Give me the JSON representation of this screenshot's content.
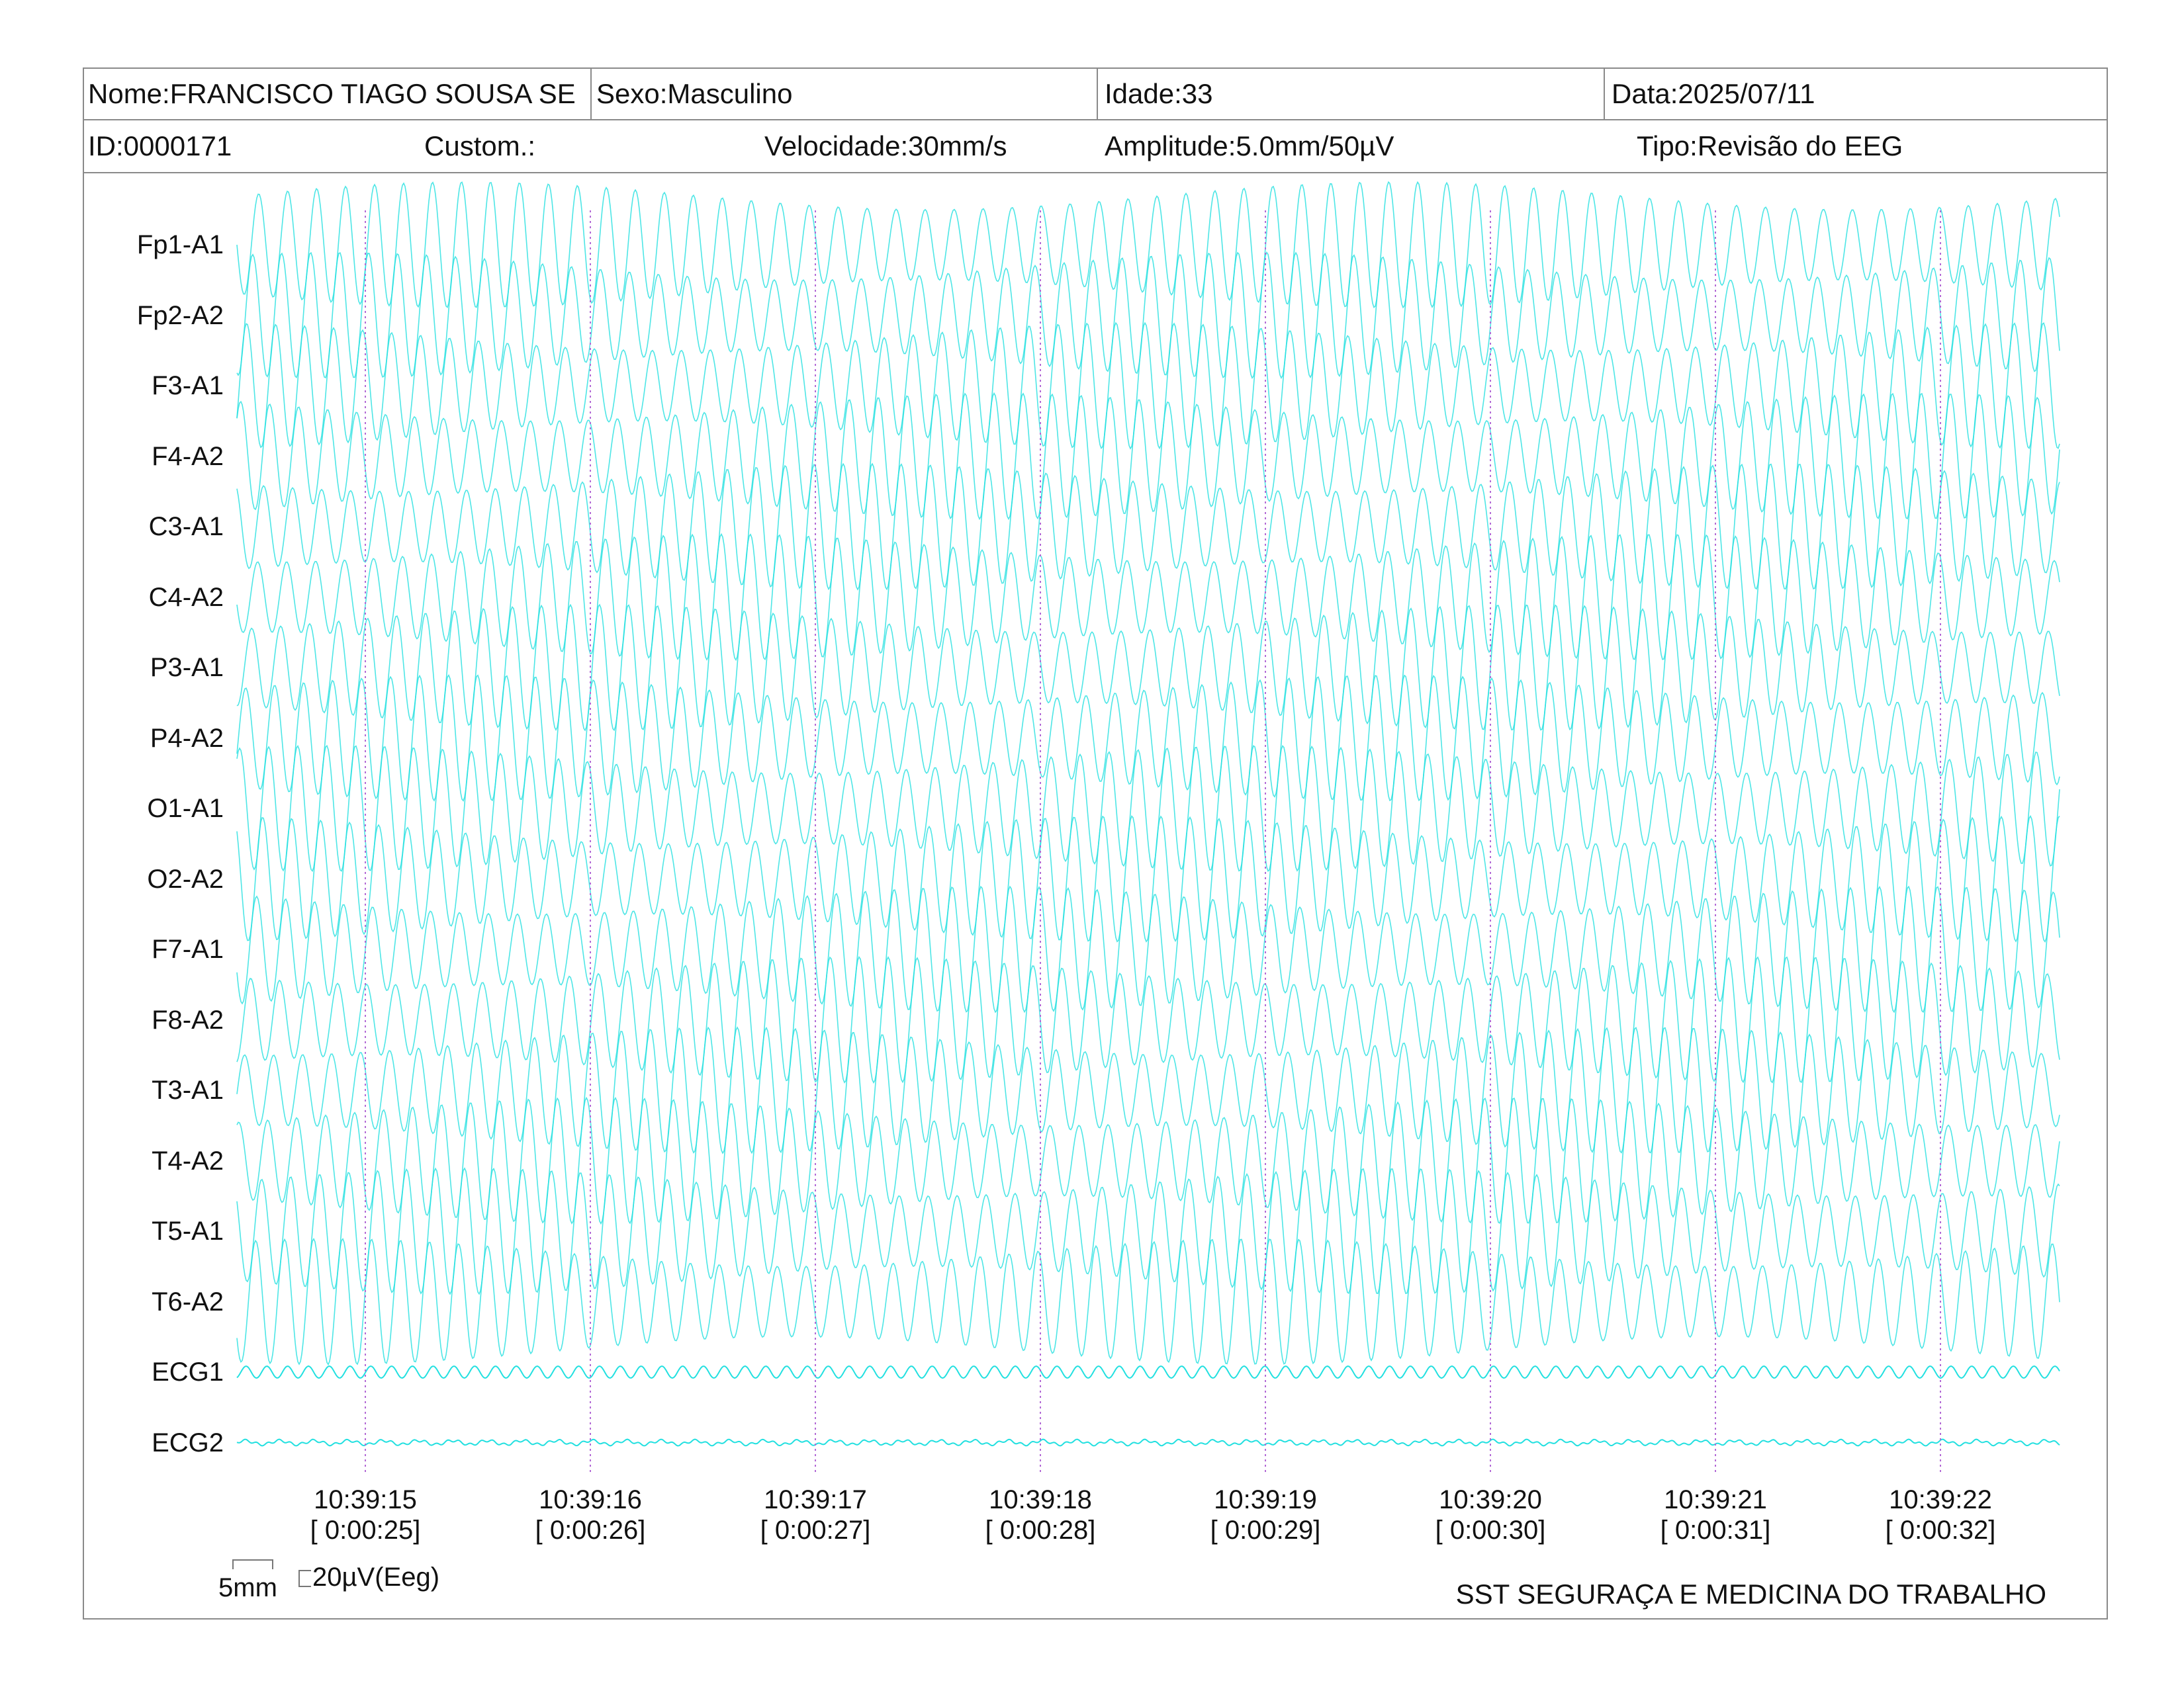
{
  "header": {
    "name": "Nome:FRANCISCO TIAGO SOUSA SE",
    "sex": "Sexo:Masculino",
    "age": "Idade:33",
    "date": "Data:2025/07/11",
    "id": "ID:0000171",
    "custom": "Custom.:",
    "speed": "Velocidade:30mm/s",
    "amplitude": "Amplitude:5.0mm/50µV",
    "type": "Tipo:Revisão do EEG"
  },
  "channels": [
    "Fp1-A1",
    "Fp2-A2",
    "F3-A1",
    "F4-A2",
    "C3-A1",
    "C4-A2",
    "P3-A1",
    "P4-A2",
    "O1-A1",
    "O2-A2",
    "F7-A1",
    "F8-A2",
    "T3-A1",
    "T4-A2",
    "T5-A1",
    "T6-A2",
    "ECG1",
    "ECG2"
  ],
  "time_marks": [
    {
      "clock": "10:39:15",
      "elapsed": "[ 0:00:25]"
    },
    {
      "clock": "10:39:16",
      "elapsed": "[ 0:00:26]"
    },
    {
      "clock": "10:39:17",
      "elapsed": "[ 0:00:27]"
    },
    {
      "clock": "10:39:18",
      "elapsed": "[ 0:00:28]"
    },
    {
      "clock": "10:39:19",
      "elapsed": "[ 0:00:29]"
    },
    {
      "clock": "10:39:20",
      "elapsed": "[ 0:00:30]"
    },
    {
      "clock": "10:39:21",
      "elapsed": "[ 0:00:31]"
    },
    {
      "clock": "10:39:22",
      "elapsed": "[ 0:00:32]"
    }
  ],
  "scale": {
    "time_label": "5mm",
    "amplitude_label": "20µV(Eeg)"
  },
  "footer": {
    "company": "SST SEGURAÇA E MEDICINA DO TRABALHO"
  },
  "colors": {
    "trace": "#22e0e0",
    "marker": "#b36ad6",
    "border": "#8a8a8a"
  }
}
